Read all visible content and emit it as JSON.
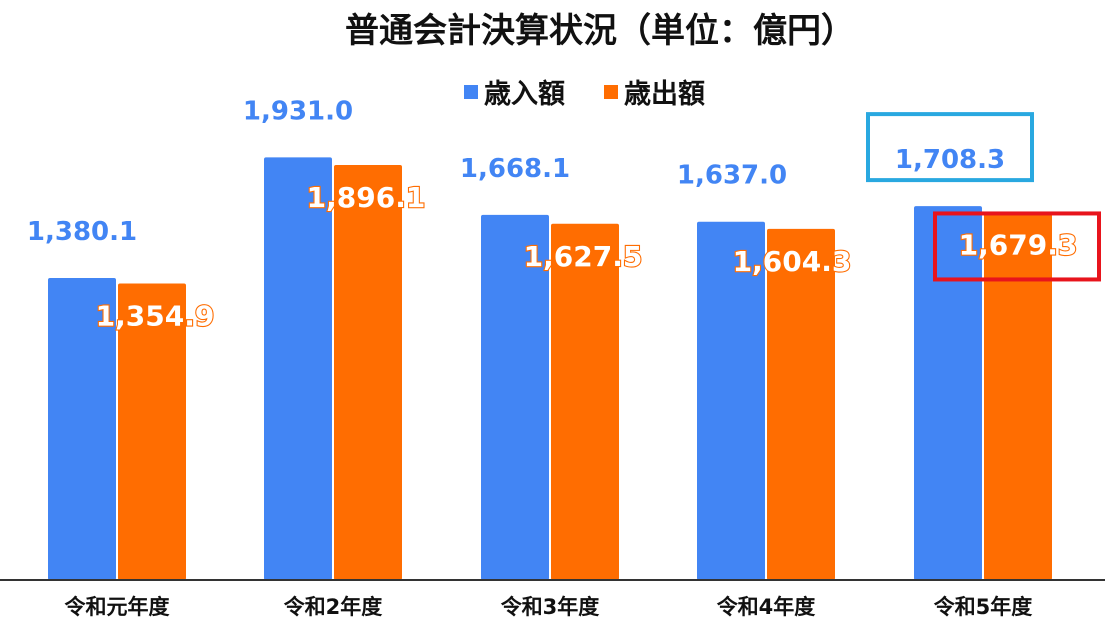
{
  "chart_data": {
    "type": "bar",
    "title": "普通会計決算状況（単位：億円）",
    "categories": [
      "令和元年度",
      "令和2年度",
      "令和3年度",
      "令和4年度",
      "令和5年度"
    ],
    "series": [
      {
        "name": "歳入額",
        "color": "#4285f4",
        "values": [
          1380.1,
          1931.0,
          1668.1,
          1637.0,
          1708.3
        ],
        "labels": [
          "1,380.1",
          "1,931.0",
          "1,668.1",
          "1,637.0",
          "1,708.3"
        ]
      },
      {
        "name": "歳出額",
        "color": "#ff6d01",
        "values": [
          1354.9,
          1896.1,
          1627.5,
          1604.3,
          1679.3
        ],
        "labels": [
          "1,354.9",
          "1,896.1",
          "1,627.5",
          "1,604.3",
          "1,679.3"
        ]
      }
    ],
    "ylim": [
      0,
      2650
    ],
    "legend_position": "top",
    "grid": false,
    "highlight": {
      "category_index": 4,
      "income_box_color": "#29a8e0",
      "expense_box_color": "#e8141c"
    }
  }
}
